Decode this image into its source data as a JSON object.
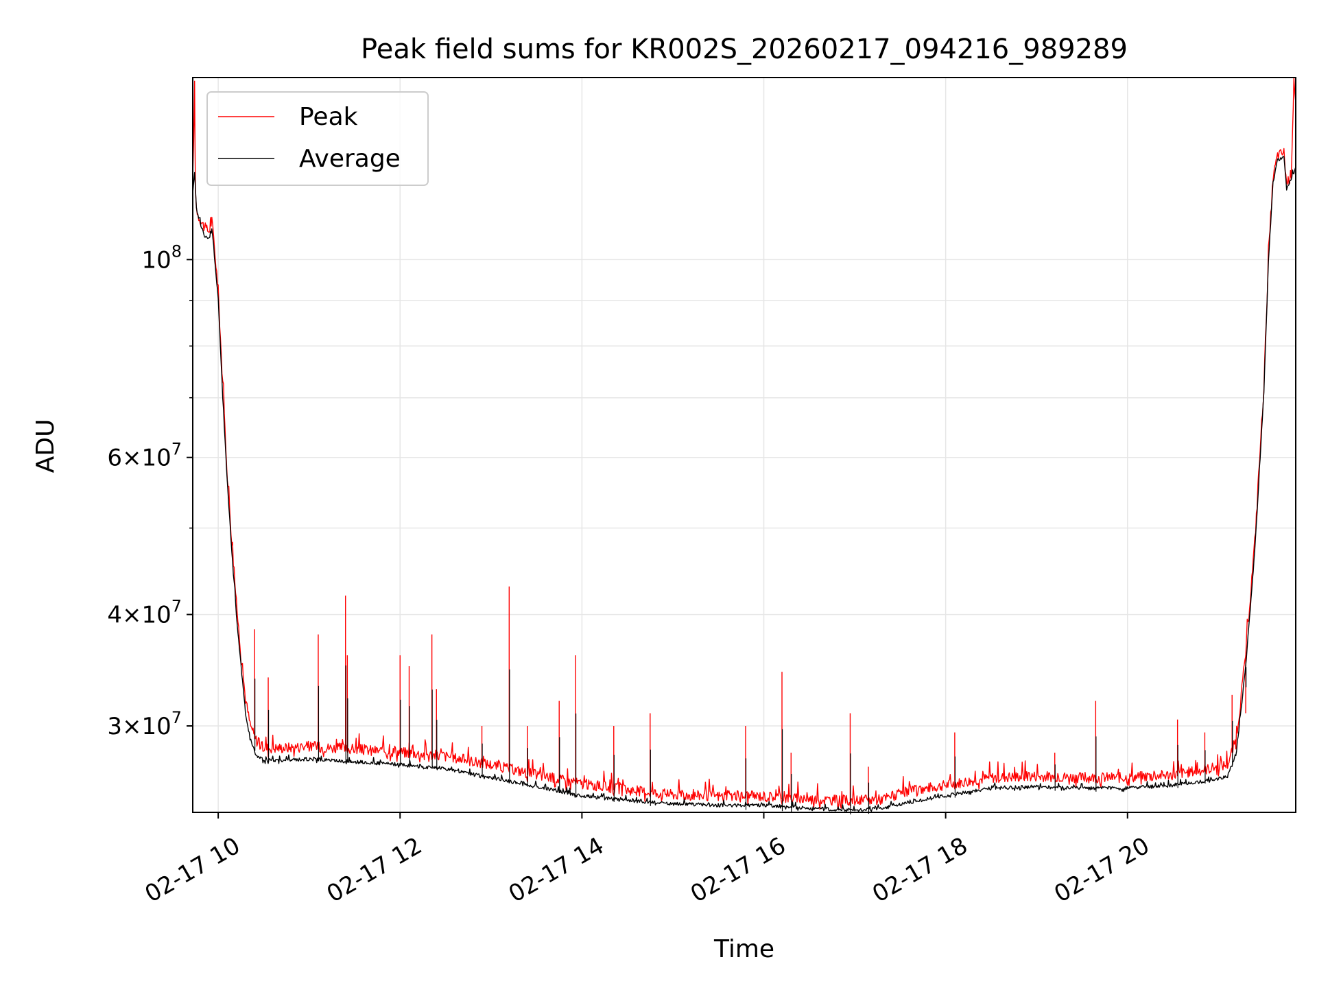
{
  "chart_data": {
    "type": "line",
    "title": "Peak field sums for KR002S_20260217_094216_989289",
    "xlabel": "Time",
    "ylabel": "ADU",
    "yscale": "log",
    "grid": true,
    "legend_position": "top-left",
    "xlim": [
      9.72,
      21.85
    ],
    "ylim": [
      24000000,
      160000000
    ],
    "x_unit": "hours (2026-02-17)",
    "x_ticks": [
      {
        "value": 10,
        "label": "02-17 10"
      },
      {
        "value": 12,
        "label": "02-17 12"
      },
      {
        "value": 14,
        "label": "02-17 14"
      },
      {
        "value": 16,
        "label": "02-17 16"
      },
      {
        "value": 18,
        "label": "02-17 18"
      },
      {
        "value": 20,
        "label": "02-17 20"
      }
    ],
    "y_ticks": [
      {
        "value": 30000000,
        "label_main": "3×10",
        "label_exp": "7"
      },
      {
        "value": 40000000,
        "label_main": "4×10",
        "label_exp": "7"
      },
      {
        "value": 60000000,
        "label_main": "6×10",
        "label_exp": "7"
      },
      {
        "value": 100000000,
        "label_main": "10",
        "label_exp": "8"
      }
    ],
    "y_minor_ticks": [
      50000000,
      70000000,
      80000000,
      90000000
    ],
    "series": [
      {
        "name": "Peak",
        "color": "#ff0000",
        "x": [
          9.72,
          9.74,
          9.75,
          9.77,
          9.85,
          9.9,
          9.93,
          9.95,
          10.0,
          10.05,
          10.1,
          10.15,
          10.2,
          10.25,
          10.3,
          10.35,
          10.4,
          10.45,
          10.5,
          10.7,
          11.0,
          11.5,
          12.0,
          12.5,
          13.0,
          13.5,
          14.0,
          14.5,
          15.0,
          15.5,
          16.0,
          16.5,
          17.0,
          17.3,
          17.6,
          18.0,
          18.5,
          19.0,
          19.5,
          20.0,
          20.5,
          20.9,
          21.1,
          21.2,
          21.3,
          21.4,
          21.5,
          21.55,
          21.6,
          21.65,
          21.72,
          21.75,
          21.8,
          21.83,
          21.85
        ],
        "y": [
          122000000,
          152000000,
          118000000,
          112000000,
          108000000,
          107000000,
          110000000,
          105000000,
          92000000,
          72000000,
          57000000,
          48000000,
          41000000,
          36000000,
          32000000,
          30000000,
          29000000,
          28400000,
          28200000,
          28200000,
          28300000,
          28100000,
          27900000,
          27600000,
          27000000,
          26300000,
          25700000,
          25300000,
          25000000,
          24900000,
          24900000,
          24700000,
          24600000,
          24700000,
          25200000,
          25600000,
          26100000,
          26200000,
          26100000,
          26100000,
          26300000,
          26700000,
          27000000,
          29000000,
          36000000,
          48000000,
          72000000,
          100000000,
          123000000,
          130000000,
          131000000,
          121000000,
          124000000,
          158000000,
          150000000
        ],
        "spikes": [
          {
            "x": 10.4,
            "y": 38500000
          },
          {
            "x": 10.55,
            "y": 34000000
          },
          {
            "x": 11.1,
            "y": 38000000
          },
          {
            "x": 11.4,
            "y": 42000000
          },
          {
            "x": 11.42,
            "y": 36000000
          },
          {
            "x": 12.0,
            "y": 36000000
          },
          {
            "x": 12.1,
            "y": 35000000
          },
          {
            "x": 12.35,
            "y": 38000000
          },
          {
            "x": 12.4,
            "y": 33000000
          },
          {
            "x": 12.9,
            "y": 30000000
          },
          {
            "x": 13.2,
            "y": 43000000
          },
          {
            "x": 13.4,
            "y": 30000000
          },
          {
            "x": 13.75,
            "y": 32000000
          },
          {
            "x": 13.93,
            "y": 36000000
          },
          {
            "x": 14.35,
            "y": 30000000
          },
          {
            "x": 14.75,
            "y": 31000000
          },
          {
            "x": 15.8,
            "y": 30000000
          },
          {
            "x": 16.2,
            "y": 34500000
          },
          {
            "x": 16.3,
            "y": 28000000
          },
          {
            "x": 16.95,
            "y": 31000000
          },
          {
            "x": 17.15,
            "y": 27000000
          },
          {
            "x": 18.1,
            "y": 29500000
          },
          {
            "x": 19.2,
            "y": 28000000
          },
          {
            "x": 19.65,
            "y": 32000000
          },
          {
            "x": 20.55,
            "y": 30500000
          },
          {
            "x": 20.85,
            "y": 29500000
          },
          {
            "x": 21.15,
            "y": 32500000
          },
          {
            "x": 21.3,
            "y": 31000000
          }
        ]
      },
      {
        "name": "Average",
        "color": "#000000",
        "x": [
          9.72,
          9.74,
          9.76,
          9.8,
          9.85,
          9.9,
          9.93,
          9.95,
          10.0,
          10.05,
          10.1,
          10.15,
          10.2,
          10.25,
          10.3,
          10.35,
          10.4,
          10.45,
          10.5,
          10.7,
          11.0,
          11.5,
          12.0,
          12.5,
          13.0,
          13.5,
          14.0,
          14.5,
          15.0,
          15.5,
          16.0,
          16.5,
          17.0,
          17.3,
          17.6,
          18.0,
          18.5,
          19.0,
          19.5,
          20.0,
          20.5,
          20.9,
          21.1,
          21.2,
          21.3,
          21.4,
          21.5,
          21.55,
          21.6,
          21.65,
          21.72,
          21.75,
          21.8,
          21.83,
          21.85
        ],
        "y": [
          118000000,
          125000000,
          114000000,
          110000000,
          106000000,
          105000000,
          108000000,
          103000000,
          90000000,
          70000000,
          56000000,
          47000000,
          40000000,
          35000000,
          31000000,
          29000000,
          28000000,
          27600000,
          27400000,
          27400000,
          27500000,
          27300000,
          27100000,
          26800000,
          26200000,
          25600000,
          25000000,
          24700000,
          24500000,
          24400000,
          24400000,
          24200000,
          24100000,
          24200000,
          24600000,
          25000000,
          25500000,
          25600000,
          25500000,
          25500000,
          25700000,
          26000000,
          26300000,
          28000000,
          35000000,
          47000000,
          71000000,
          99000000,
          122000000,
          129000000,
          130000000,
          120000000,
          123000000,
          125000000,
          127000000
        ]
      }
    ]
  }
}
